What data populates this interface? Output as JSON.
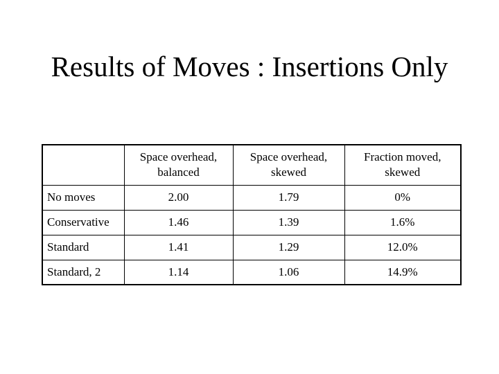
{
  "slide": {
    "title": "Results of Moves : Insertions Only"
  },
  "table": {
    "headers": [
      {
        "line1": "",
        "line2": ""
      },
      {
        "line1": "Space overhead,",
        "line2": "balanced"
      },
      {
        "line1": "Space overhead,",
        "line2": "skewed"
      },
      {
        "line1": "Fraction moved,",
        "line2": "skewed"
      }
    ],
    "rows": [
      {
        "label": "No moves",
        "balanced": "2.00",
        "skewed": "1.79",
        "fraction": "0%"
      },
      {
        "label": "Conservative",
        "balanced": "1.46",
        "skewed": "1.39",
        "fraction": "1.6%"
      },
      {
        "label": "Standard",
        "balanced": "1.41",
        "skewed": "1.29",
        "fraction": "12.0%"
      },
      {
        "label": "Standard, 2",
        "balanced": "1.14",
        "skewed": "1.06",
        "fraction": "14.9%"
      }
    ]
  }
}
